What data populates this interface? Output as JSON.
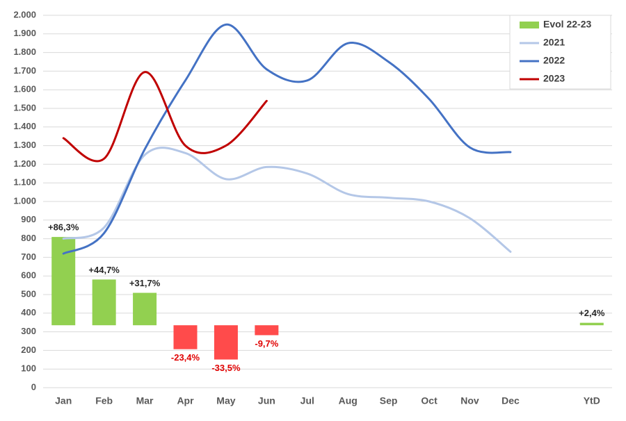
{
  "chart_data": {
    "type": "bar-line",
    "categories": [
      "Jan",
      "Feb",
      "Mar",
      "Apr",
      "May",
      "Jun",
      "Jul",
      "Aug",
      "Sep",
      "Oct",
      "Nov",
      "Dec",
      null,
      "YtD"
    ],
    "ylim": [
      0,
      2000
    ],
    "yticks": [
      0,
      100,
      200,
      300,
      400,
      500,
      600,
      700,
      800,
      900,
      {
        "value": 1000,
        "label": "1.000"
      },
      {
        "value": 1100,
        "label": "1.100"
      },
      {
        "value": 1200,
        "label": "1.200"
      },
      {
        "value": 1300,
        "label": "1.300"
      },
      {
        "value": 1400,
        "label": "1.400"
      },
      {
        "value": 1500,
        "label": "1.500"
      },
      {
        "value": 1600,
        "label": "1.600"
      },
      {
        "value": 1700,
        "label": "1.700"
      },
      {
        "value": 1800,
        "label": "1.800"
      },
      {
        "value": 1900,
        "label": "1.900"
      },
      {
        "value": 2000,
        "label": "2.000"
      }
    ],
    "y2lim": [
      -61,
      303
    ],
    "grid": true,
    "legend": "upper right",
    "series": [
      {
        "name": "Evol 22-23",
        "type": "bar",
        "axis": "y2",
        "color": "#92d050",
        "negative_color": "#ff4b4b",
        "values": [
          86.3,
          44.7,
          31.7,
          -23.4,
          -33.5,
          -9.7,
          null,
          null,
          null,
          null,
          null,
          null,
          null,
          2.4
        ],
        "value_labels": [
          "+86,3%",
          "+44,7%",
          "+31,7%",
          "-23,4%",
          "-33,5%",
          "-9,7%",
          null,
          null,
          null,
          null,
          null,
          null,
          null,
          "+2,4%"
        ]
      },
      {
        "name": "2021",
        "type": "line",
        "color": "#b4c7e7",
        "values": [
          800,
          860,
          1250,
          1260,
          1120,
          1185,
          1150,
          1040,
          1020,
          1000,
          910,
          730,
          null,
          null
        ]
      },
      {
        "name": "2022",
        "type": "line",
        "color": "#4472c4",
        "values": [
          720,
          830,
          1280,
          1650,
          1950,
          1710,
          1650,
          1850,
          1750,
          1550,
          1290,
          1265,
          null,
          null
        ]
      },
      {
        "name": "2023",
        "type": "line",
        "color": "#c00000",
        "values": [
          1340,
          1230,
          1695,
          1300,
          1300,
          1540,
          null,
          null,
          null,
          null,
          null,
          null,
          null,
          null
        ]
      }
    ]
  }
}
